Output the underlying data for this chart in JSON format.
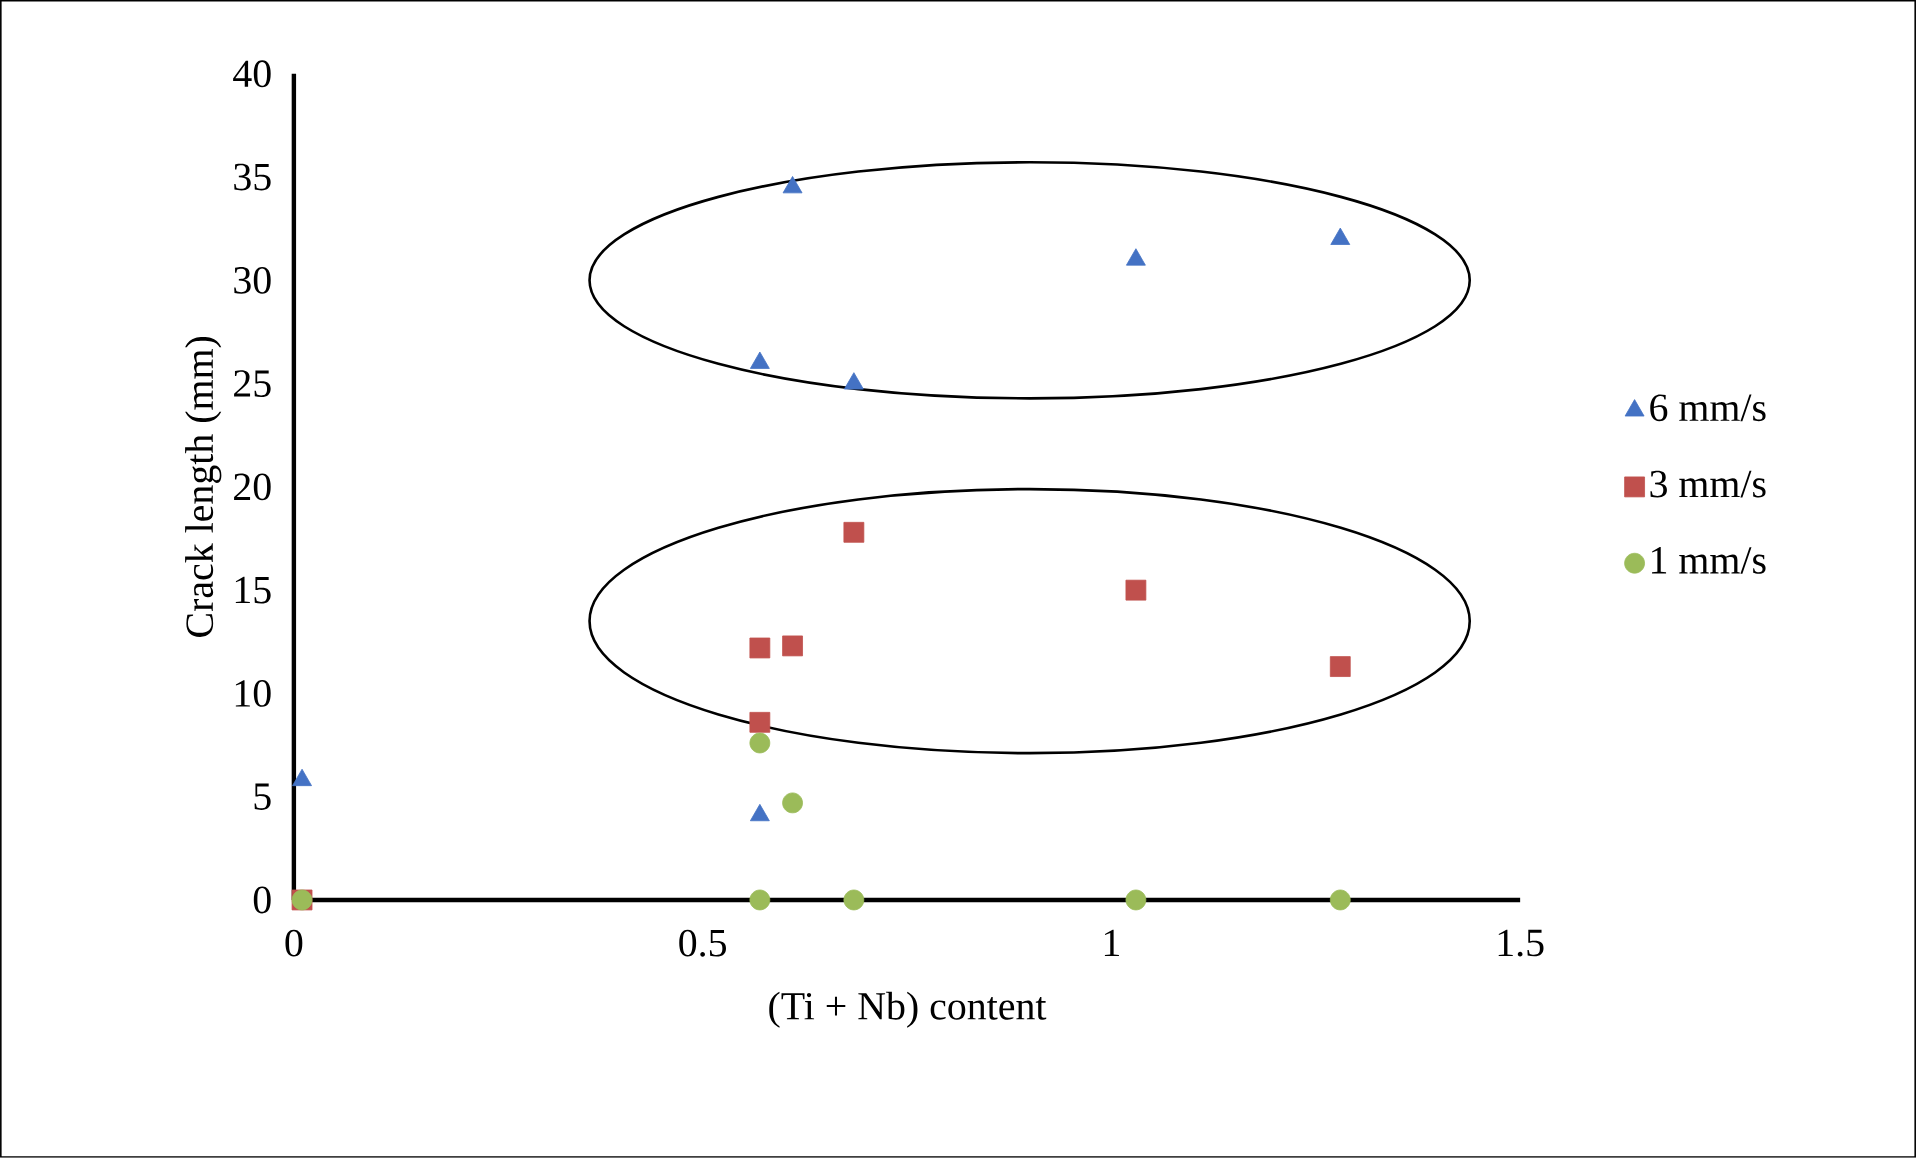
{
  "chart_data": {
    "type": "scatter",
    "xlabel": "(Ti + Nb) content",
    "ylabel": "Crack length (mm)",
    "xlim": [
      0,
      1.5
    ],
    "ylim": [
      0,
      40
    ],
    "xticks": [
      0,
      0.5,
      1,
      1.5
    ],
    "yticks": [
      0,
      5,
      10,
      15,
      20,
      25,
      30,
      35,
      40
    ],
    "grid": false,
    "legend": "right",
    "series": [
      {
        "name": "6 mm/s",
        "color": "#4472c4",
        "marker": "triangle",
        "x": [
          0.01,
          0.57,
          0.57,
          0.61,
          0.685,
          1.03,
          1.28
        ],
        "values": [
          5.8,
          4.1,
          26,
          34.5,
          25,
          31,
          32
        ]
      },
      {
        "name": "3 mm/s",
        "color": "#c0504d",
        "marker": "square",
        "x": [
          0.01,
          0.57,
          0.57,
          0.61,
          0.685,
          1.03,
          1.28
        ],
        "values": [
          0,
          8.6,
          12.2,
          12.3,
          17.8,
          15,
          11.3
        ]
      },
      {
        "name": "1 mm/s",
        "color": "#9bbb59",
        "marker": "circle",
        "x": [
          0.01,
          0.57,
          0.61,
          0.57,
          0.685,
          1.03,
          1.28
        ],
        "values": [
          0,
          7.6,
          4.7,
          0,
          0,
          0,
          0
        ]
      }
    ]
  }
}
